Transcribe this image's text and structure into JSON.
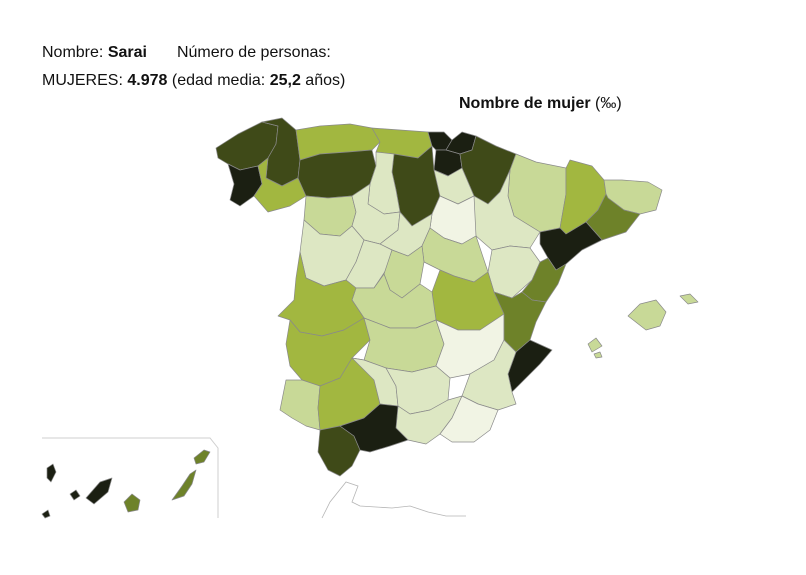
{
  "info": {
    "name_label": "Nombre:",
    "name_value": "Sarai",
    "count_label": "Número de personas:",
    "gender_label": "MUJERES:",
    "count_value": "4.978",
    "age_prefix": "(edad media:",
    "age_value": "25,2",
    "age_suffix": "años)"
  },
  "map": {
    "title": "Nombre de mujer",
    "unit": "(‰)",
    "legend_colors": [
      "#f1f4e4",
      "#dde7c3",
      "#c8d997",
      "#a2b740",
      "#6e8229",
      "#3f4a18",
      "#1b1f12"
    ]
  }
}
